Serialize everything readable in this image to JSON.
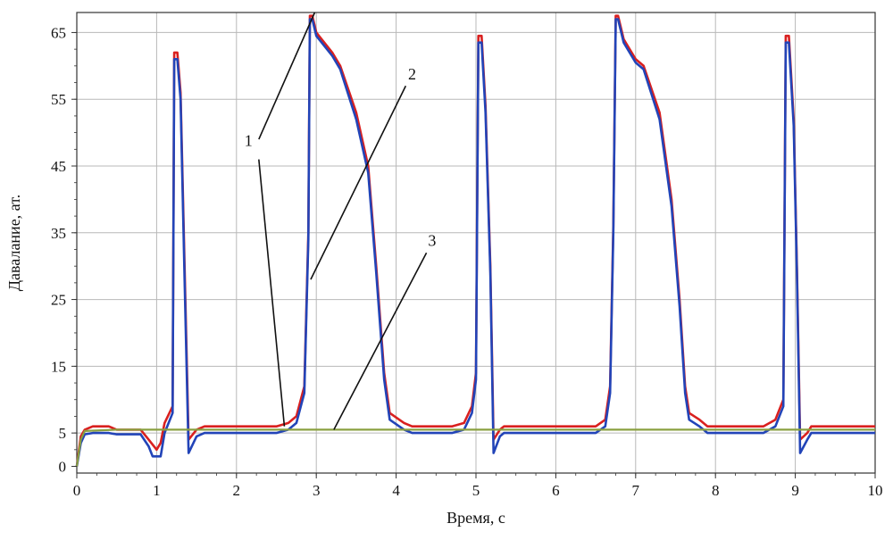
{
  "chart_data": {
    "type": "line",
    "title": "",
    "xlabel": "Время, с",
    "ylabel": "Давалание, ат.",
    "xlim": [
      0,
      10
    ],
    "ylim": [
      -1,
      68
    ],
    "x_ticks": [
      0,
      1,
      2,
      3,
      4,
      5,
      6,
      7,
      8,
      9,
      10
    ],
    "y_ticks": [
      0,
      5,
      15,
      25,
      35,
      45,
      55,
      65
    ],
    "grid": true,
    "colors": {
      "red": "#d9201f",
      "blue": "#2244b8",
      "green": "#8aa040"
    },
    "series": [
      {
        "key": "red",
        "points": [
          [
            0,
            0
          ],
          [
            0.05,
            4.5
          ],
          [
            0.1,
            5.5
          ],
          [
            0.2,
            6
          ],
          [
            0.4,
            6
          ],
          [
            0.5,
            5.5
          ],
          [
            0.8,
            5.5
          ],
          [
            0.9,
            4
          ],
          [
            1.0,
            2.5
          ],
          [
            1.05,
            3.5
          ],
          [
            1.1,
            6.5
          ],
          [
            1.2,
            9
          ],
          [
            1.22,
            62
          ],
          [
            1.26,
            62
          ],
          [
            1.3,
            56
          ],
          [
            1.35,
            30
          ],
          [
            1.4,
            4
          ],
          [
            1.5,
            5.5
          ],
          [
            1.6,
            6
          ],
          [
            2.5,
            6
          ],
          [
            2.65,
            6.5
          ],
          [
            2.75,
            7.5
          ],
          [
            2.85,
            12
          ],
          [
            2.9,
            35
          ],
          [
            2.92,
            67.5
          ],
          [
            2.95,
            67.5
          ],
          [
            3.0,
            65
          ],
          [
            3.2,
            62
          ],
          [
            3.3,
            60
          ],
          [
            3.5,
            53
          ],
          [
            3.65,
            45
          ],
          [
            3.75,
            30
          ],
          [
            3.85,
            14
          ],
          [
            3.92,
            8
          ],
          [
            4.1,
            6.5
          ],
          [
            4.2,
            6
          ],
          [
            4.7,
            6
          ],
          [
            4.85,
            6.5
          ],
          [
            4.95,
            9
          ],
          [
            5.0,
            14
          ],
          [
            5.03,
            64.5
          ],
          [
            5.07,
            64.5
          ],
          [
            5.12,
            54
          ],
          [
            5.18,
            30
          ],
          [
            5.22,
            4
          ],
          [
            5.3,
            5.5
          ],
          [
            5.35,
            6
          ],
          [
            6.5,
            6
          ],
          [
            6.62,
            7
          ],
          [
            6.68,
            12
          ],
          [
            6.72,
            36
          ],
          [
            6.75,
            67.5
          ],
          [
            6.78,
            67.5
          ],
          [
            6.85,
            64
          ],
          [
            7.0,
            61
          ],
          [
            7.1,
            60
          ],
          [
            7.3,
            53
          ],
          [
            7.45,
            40
          ],
          [
            7.55,
            25
          ],
          [
            7.62,
            12
          ],
          [
            7.67,
            8
          ],
          [
            7.8,
            7
          ],
          [
            7.9,
            6
          ],
          [
            8.6,
            6
          ],
          [
            8.75,
            7
          ],
          [
            8.85,
            10
          ],
          [
            8.88,
            64.5
          ],
          [
            8.92,
            64.5
          ],
          [
            8.98,
            52
          ],
          [
            9.02,
            30
          ],
          [
            9.06,
            4
          ],
          [
            9.15,
            5
          ],
          [
            9.2,
            6
          ],
          [
            10,
            6
          ]
        ]
      },
      {
        "key": "blue",
        "points": [
          [
            0,
            0
          ],
          [
            0.05,
            3.5
          ],
          [
            0.1,
            4.8
          ],
          [
            0.2,
            5
          ],
          [
            0.4,
            5
          ],
          [
            0.5,
            4.8
          ],
          [
            0.8,
            4.8
          ],
          [
            0.9,
            3
          ],
          [
            0.95,
            1.5
          ],
          [
            1.05,
            1.5
          ],
          [
            1.1,
            5
          ],
          [
            1.2,
            8
          ],
          [
            1.22,
            61
          ],
          [
            1.26,
            61
          ],
          [
            1.3,
            55
          ],
          [
            1.35,
            28
          ],
          [
            1.4,
            2
          ],
          [
            1.5,
            4.5
          ],
          [
            1.6,
            5
          ],
          [
            2.5,
            5
          ],
          [
            2.65,
            5.5
          ],
          [
            2.75,
            6.5
          ],
          [
            2.85,
            11
          ],
          [
            2.9,
            34
          ],
          [
            2.92,
            67
          ],
          [
            2.95,
            67
          ],
          [
            3.0,
            64.5
          ],
          [
            3.2,
            61.5
          ],
          [
            3.3,
            59.5
          ],
          [
            3.5,
            52
          ],
          [
            3.65,
            44
          ],
          [
            3.75,
            29
          ],
          [
            3.85,
            13
          ],
          [
            3.92,
            7
          ],
          [
            4.1,
            5.5
          ],
          [
            4.2,
            5
          ],
          [
            4.7,
            5
          ],
          [
            4.85,
            5.5
          ],
          [
            4.95,
            8
          ],
          [
            5.0,
            13
          ],
          [
            5.03,
            63.5
          ],
          [
            5.07,
            63.5
          ],
          [
            5.12,
            53
          ],
          [
            5.18,
            29
          ],
          [
            5.22,
            2
          ],
          [
            5.3,
            4.5
          ],
          [
            5.35,
            5
          ],
          [
            6.5,
            5
          ],
          [
            6.62,
            6
          ],
          [
            6.68,
            11
          ],
          [
            6.72,
            35
          ],
          [
            6.75,
            67
          ],
          [
            6.78,
            67
          ],
          [
            6.85,
            63.5
          ],
          [
            7.0,
            60.5
          ],
          [
            7.1,
            59.5
          ],
          [
            7.3,
            52
          ],
          [
            7.45,
            39
          ],
          [
            7.55,
            24
          ],
          [
            7.62,
            11
          ],
          [
            7.67,
            7
          ],
          [
            7.8,
            6
          ],
          [
            7.9,
            5
          ],
          [
            8.6,
            5
          ],
          [
            8.75,
            6
          ],
          [
            8.85,
            9
          ],
          [
            8.88,
            63.5
          ],
          [
            8.92,
            63.5
          ],
          [
            8.98,
            51
          ],
          [
            9.02,
            29
          ],
          [
            9.06,
            2
          ],
          [
            9.15,
            4
          ],
          [
            9.2,
            5
          ],
          [
            10,
            5
          ]
        ]
      },
      {
        "key": "green",
        "points": [
          [
            0,
            0
          ],
          [
            0.05,
            4
          ],
          [
            0.1,
            5.3
          ],
          [
            0.5,
            5.5
          ],
          [
            10,
            5.5
          ]
        ]
      }
    ],
    "annotations": [
      {
        "label": "1",
        "text_at": [
          2.15,
          48
        ],
        "lines": [
          [
            [
              2.28,
              49
            ],
            [
              2.98,
              68
            ]
          ],
          [
            [
              2.28,
              46
            ],
            [
              2.6,
              6
            ]
          ]
        ]
      },
      {
        "label": "2",
        "text_at": [
          4.2,
          58
        ],
        "lines": [
          [
            [
              4.12,
              57
            ],
            [
              2.93,
              28
            ]
          ]
        ]
      },
      {
        "label": "3",
        "text_at": [
          4.45,
          33
        ],
        "lines": [
          [
            [
              4.38,
              32
            ],
            [
              3.22,
              5.5
            ]
          ]
        ]
      }
    ]
  }
}
